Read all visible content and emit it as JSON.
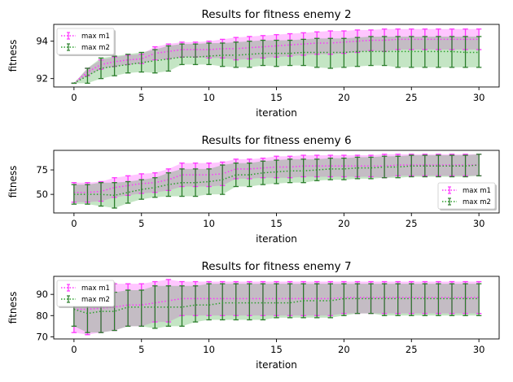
{
  "chart_data": [
    {
      "type": "line",
      "title": "Results for fitness enemy 2",
      "xlabel": "iteration",
      "ylabel": "fitness",
      "xlim": [
        -1.5,
        31.5
      ],
      "ylim": [
        91.55,
        94.9
      ],
      "xticks": [
        0,
        5,
        10,
        15,
        20,
        25,
        30
      ],
      "yticks": [
        92,
        94
      ],
      "legend_loc": "upper-left",
      "x": [
        0,
        1,
        2,
        3,
        4,
        5,
        6,
        7,
        8,
        9,
        10,
        11,
        12,
        13,
        14,
        15,
        16,
        17,
        18,
        19,
        20,
        21,
        22,
        23,
        24,
        25,
        26,
        27,
        28,
        29,
        30
      ],
      "series": [
        {
          "name": "max m1",
          "color": "#ff33ff",
          "mean": [
            91.75,
            92.35,
            92.75,
            92.9,
            93.0,
            93.05,
            93.35,
            93.45,
            93.55,
            93.55,
            93.55,
            93.6,
            93.6,
            93.65,
            93.7,
            93.75,
            93.8,
            93.85,
            93.9,
            93.9,
            93.95,
            94.0,
            94.05,
            94.05,
            94.1,
            94.1,
            94.1,
            94.1,
            94.1,
            94.1,
            94.1
          ],
          "upper": [
            91.75,
            92.55,
            93.0,
            93.15,
            93.25,
            93.3,
            93.7,
            93.85,
            93.95,
            93.95,
            94.0,
            94.1,
            94.2,
            94.25,
            94.3,
            94.35,
            94.4,
            94.45,
            94.5,
            94.55,
            94.55,
            94.6,
            94.6,
            94.65,
            94.65,
            94.65,
            94.65,
            94.65,
            94.65,
            94.65,
            94.65
          ],
          "lower": [
            91.75,
            92.15,
            92.5,
            92.65,
            92.75,
            92.8,
            93.0,
            93.05,
            93.15,
            93.15,
            93.1,
            93.1,
            93.0,
            93.05,
            93.1,
            93.15,
            93.2,
            93.25,
            93.3,
            93.3,
            93.35,
            93.4,
            93.5,
            93.45,
            93.55,
            93.55,
            93.55,
            93.55,
            93.55,
            93.55,
            93.55
          ]
        },
        {
          "name": "max m2",
          "color": "#2ca02c",
          "mean": [
            91.75,
            92.15,
            92.55,
            92.65,
            92.75,
            92.85,
            92.95,
            93.05,
            93.15,
            93.15,
            93.2,
            93.25,
            93.25,
            93.3,
            93.35,
            93.35,
            93.35,
            93.4,
            93.4,
            93.4,
            93.4,
            93.45,
            93.45,
            93.45,
            93.45,
            93.45,
            93.45,
            93.45,
            93.45,
            93.4,
            93.4
          ],
          "upper": [
            91.75,
            92.55,
            93.1,
            93.2,
            93.3,
            93.4,
            93.55,
            93.75,
            93.85,
            93.85,
            93.9,
            93.9,
            93.95,
            94.0,
            94.05,
            94.05,
            94.05,
            94.1,
            94.15,
            94.15,
            94.15,
            94.2,
            94.25,
            94.25,
            94.25,
            94.25,
            94.25,
            94.25,
            94.25,
            94.25,
            94.25
          ],
          "lower": [
            91.75,
            91.75,
            92.0,
            92.15,
            92.3,
            92.35,
            92.3,
            92.4,
            92.75,
            92.75,
            92.75,
            92.65,
            92.6,
            92.6,
            92.7,
            92.65,
            92.7,
            92.7,
            92.6,
            92.55,
            92.6,
            92.65,
            92.7,
            92.7,
            92.6,
            92.6,
            92.6,
            92.6,
            92.6,
            92.6,
            92.6
          ]
        }
      ]
    },
    {
      "type": "line",
      "title": "Results for fitness enemy 6",
      "xlabel": "iteration",
      "ylabel": "fitness",
      "xlim": [
        -1.5,
        31.5
      ],
      "ylim": [
        31,
        95
      ],
      "xticks": [
        0,
        5,
        10,
        15,
        20,
        25,
        30
      ],
      "yticks": [
        50,
        75
      ],
      "legend_loc": "lower-right",
      "x": [
        0,
        1,
        2,
        3,
        4,
        5,
        6,
        7,
        8,
        9,
        10,
        11,
        12,
        13,
        14,
        15,
        16,
        17,
        18,
        19,
        20,
        21,
        22,
        23,
        24,
        25,
        26,
        27,
        28,
        29,
        30
      ],
      "series": [
        {
          "name": "max m1",
          "color": "#ff33ff",
          "mean": [
            52,
            52,
            53,
            57,
            59,
            61,
            62,
            65,
            70,
            70,
            70,
            71,
            76,
            76,
            77,
            78,
            78,
            79,
            79,
            79,
            79,
            79,
            79,
            79,
            80,
            80,
            80,
            80,
            80,
            80,
            80
          ],
          "upper": [
            62,
            62,
            63,
            67,
            69,
            71,
            72,
            76,
            82,
            82,
            82,
            83,
            86,
            86,
            87,
            89,
            89,
            90,
            90,
            90,
            90,
            90,
            90,
            91,
            91,
            91,
            91,
            91,
            91,
            91,
            91
          ],
          "lower": [
            42,
            42,
            43,
            47,
            49,
            51,
            52,
            54,
            58,
            58,
            58,
            59,
            66,
            66,
            67,
            67,
            67,
            68,
            68,
            68,
            68,
            68,
            68,
            67,
            69,
            69,
            69,
            69,
            69,
            69,
            69
          ]
        },
        {
          "name": "max m2",
          "color": "#2ca02c",
          "mean": [
            50,
            50,
            50,
            49,
            52,
            55,
            57,
            60,
            62,
            62,
            63,
            65,
            70,
            70,
            72,
            73,
            74,
            74,
            75,
            76,
            76,
            77,
            77,
            78,
            78,
            79,
            79,
            79,
            79,
            79,
            80
          ],
          "upper": [
            60,
            60,
            62,
            62,
            63,
            65,
            67,
            72,
            76,
            76,
            76,
            80,
            82,
            82,
            84,
            85,
            86,
            86,
            86,
            87,
            87,
            88,
            88,
            89,
            89,
            90,
            90,
            90,
            90,
            90,
            91
          ],
          "lower": [
            40,
            40,
            38,
            36,
            41,
            45,
            47,
            48,
            48,
            48,
            50,
            50,
            58,
            58,
            60,
            61,
            62,
            62,
            64,
            65,
            65,
            66,
            66,
            67,
            67,
            68,
            68,
            68,
            68,
            68,
            69
          ]
        }
      ]
    },
    {
      "type": "line",
      "title": "Results for fitness enemy 7",
      "xlabel": "iteration",
      "ylabel": "fitness",
      "xlim": [
        -1.5,
        31.5
      ],
      "ylim": [
        69,
        98.5
      ],
      "xticks": [
        0,
        5,
        10,
        15,
        20,
        25,
        30
      ],
      "yticks": [
        70,
        80,
        90
      ],
      "legend_loc": "upper-left",
      "x": [
        0,
        1,
        2,
        3,
        4,
        5,
        6,
        7,
        8,
        9,
        10,
        11,
        12,
        13,
        14,
        15,
        16,
        17,
        18,
        19,
        20,
        21,
        22,
        23,
        24,
        25,
        26,
        27,
        28,
        29,
        30
      ],
      "series": [
        {
          "name": "max m1",
          "color": "#ff33ff",
          "mean": [
            83,
            83,
            83.5,
            84,
            85,
            85,
            86,
            87,
            88,
            88,
            88,
            88,
            88,
            88,
            88,
            88,
            88,
            88,
            88,
            88,
            88.5,
            88.5,
            88.5,
            88.5,
            88.5,
            88.5,
            88.5,
            88.5,
            88.5,
            88.5,
            88.5
          ],
          "upper": [
            94,
            95,
            95,
            95,
            95,
            95,
            96,
            97,
            96,
            96,
            96,
            96,
            96,
            96,
            96,
            96,
            96,
            96,
            96,
            96,
            96,
            96,
            96,
            96,
            96,
            96,
            96,
            96,
            96,
            96,
            96
          ],
          "lower": [
            72,
            71,
            72,
            73,
            75,
            75,
            77,
            77,
            80,
            80,
            80,
            80,
            80,
            80,
            80,
            80,
            80,
            80,
            80,
            80,
            81,
            81,
            81,
            81,
            81,
            81,
            81,
            81,
            81,
            81,
            81
          ]
        },
        {
          "name": "max m2",
          "color": "#2ca02c",
          "mean": [
            83,
            81,
            82,
            82,
            84,
            84,
            84,
            84,
            84,
            85,
            85,
            86,
            86,
            86,
            86,
            86,
            86,
            87,
            87,
            87,
            88,
            88,
            88,
            88,
            88,
            88,
            88,
            88,
            88,
            88,
            88
          ],
          "upper": [
            91,
            91,
            91,
            91,
            92,
            92,
            94,
            94,
            94,
            94,
            95,
            95,
            95,
            95,
            95,
            95,
            95,
            95,
            95,
            95,
            95,
            95,
            95,
            95,
            95,
            95,
            95,
            95,
            95,
            95,
            95
          ],
          "lower": [
            75,
            72,
            72,
            73,
            75,
            75,
            74,
            75,
            75,
            77,
            78,
            78,
            78,
            78,
            78,
            79,
            79,
            79,
            79,
            79,
            80,
            81,
            81,
            80,
            80,
            80,
            80,
            80,
            80,
            80,
            80
          ]
        }
      ]
    }
  ]
}
